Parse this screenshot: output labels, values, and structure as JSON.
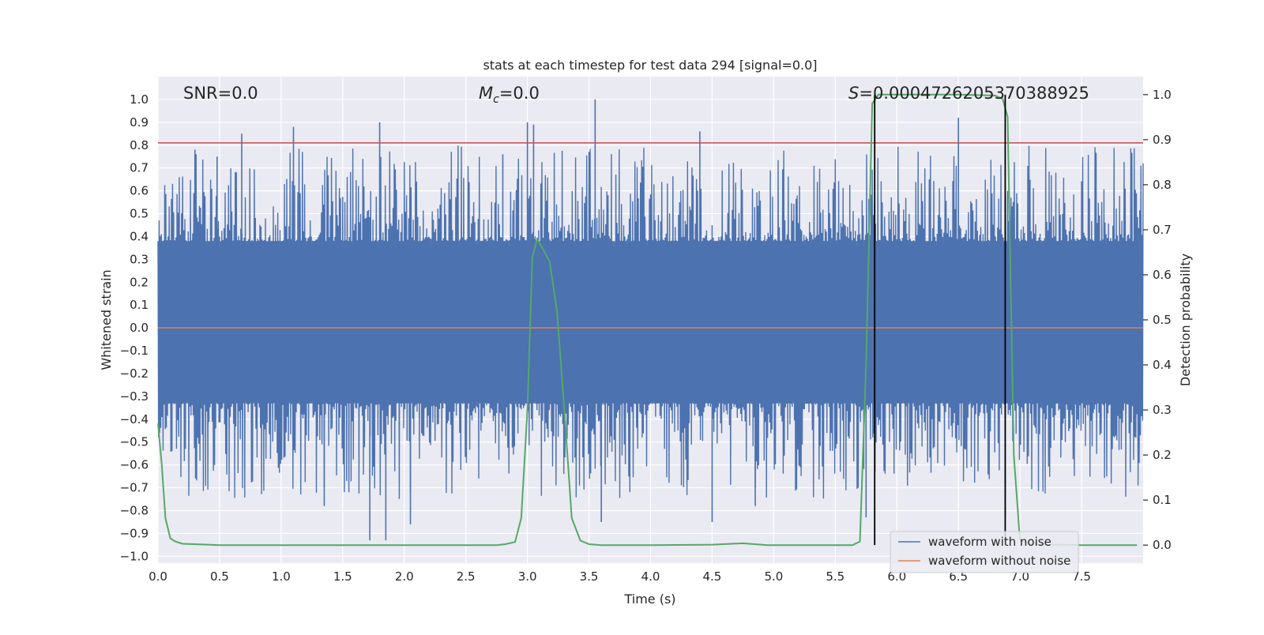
{
  "chart_data": {
    "type": "line",
    "title": "stats at each timestep for test data 294 [signal=0.0]",
    "xlabel": "Time (s)",
    "ylabel_left": "Whitened strain",
    "ylabel_right": "Detection probability",
    "xlim": [
      0.0,
      8.0
    ],
    "ylim_left": [
      -1.03,
      1.1
    ],
    "ylim_right": [
      -0.04,
      1.04
    ],
    "x_ticks": [
      0.0,
      0.5,
      1.0,
      1.5,
      2.0,
      2.5,
      3.0,
      3.5,
      4.0,
      4.5,
      5.0,
      5.5,
      6.0,
      6.5,
      7.0,
      7.5
    ],
    "x_tick_labels": [
      "0.0",
      "0.5",
      "1.0",
      "1.5",
      "2.0",
      "2.5",
      "3.0",
      "3.5",
      "4.0",
      "4.5",
      "5.0",
      "5.5",
      "6.0",
      "6.5",
      "7.0",
      "7.5"
    ],
    "y_left_ticks": [
      -1.0,
      -0.9,
      -0.8,
      -0.7,
      -0.6,
      -0.5,
      -0.4,
      -0.3,
      -0.2,
      -0.1,
      0.0,
      0.1,
      0.2,
      0.3,
      0.4,
      0.5,
      0.6,
      0.7,
      0.8,
      0.9,
      1.0
    ],
    "y_left_tick_labels": [
      "−1.0",
      "−0.9",
      "−0.8",
      "−0.7",
      "−0.6",
      "−0.5",
      "−0.4",
      "−0.3",
      "−0.2",
      "−0.1",
      "0.0",
      "0.1",
      "0.2",
      "0.3",
      "0.4",
      "0.5",
      "0.6",
      "0.7",
      "0.8",
      "0.9",
      "1.0"
    ],
    "y_right_ticks": [
      0.0,
      0.1,
      0.2,
      0.3,
      0.4,
      0.5,
      0.6,
      0.7,
      0.8,
      0.9,
      1.0
    ],
    "y_right_tick_labels": [
      "0.0",
      "0.1",
      "0.2",
      "0.3",
      "0.4",
      "0.5",
      "0.6",
      "0.7",
      "0.8",
      "0.9",
      "1.0"
    ],
    "annotations": {
      "snr": "SNR=0.0",
      "mc_symbol": "M",
      "mc_sub": "c",
      "mc_value": "=0.0",
      "s_symbol": "S",
      "s_value": "=0.0004726205370388925"
    },
    "series": [
      {
        "name": "waveform with noise",
        "color": "#4c72b0",
        "axis": "left",
        "kind": "dense-noise",
        "samples_per_second": 220,
        "typical_upper": 0.38,
        "typical_lower": -0.33,
        "peaks": [
          [
            0.3,
            0.78
          ],
          [
            0.48,
            0.75
          ],
          [
            0.68,
            0.85
          ],
          [
            1.1,
            0.88
          ],
          [
            1.8,
            0.9
          ],
          [
            1.85,
            -0.93
          ],
          [
            1.72,
            -0.93
          ],
          [
            2.8,
            0.76
          ],
          [
            3.0,
            0.9
          ],
          [
            3.05,
            0.89
          ],
          [
            3.55,
            1.0
          ],
          [
            4.4,
            0.86
          ],
          [
            5.75,
            -0.83
          ],
          [
            6.5,
            0.92
          ],
          [
            6.88,
            -0.83
          ],
          [
            1.35,
            -0.78
          ],
          [
            2.05,
            -0.86
          ],
          [
            3.6,
            -0.85
          ],
          [
            4.5,
            -0.85
          ],
          [
            4.85,
            -0.78
          ]
        ]
      },
      {
        "name": "waveform without noise",
        "color": "#dd8452",
        "axis": "left",
        "kind": "constant",
        "value": 0.0
      },
      {
        "name": "detection probability",
        "color": "#55a868",
        "axis": "right",
        "kind": "line",
        "x": [
          0.0,
          0.03,
          0.06,
          0.1,
          0.14,
          0.2,
          0.3,
          0.5,
          1.0,
          2.0,
          2.5,
          2.75,
          2.82,
          2.9,
          2.95,
          3.0,
          3.04,
          3.08,
          3.12,
          3.18,
          3.24,
          3.3,
          3.36,
          3.43,
          3.5,
          3.6,
          4.0,
          4.5,
          4.75,
          4.95,
          5.5,
          5.64,
          5.7,
          5.75,
          5.8,
          5.85,
          5.9,
          6.0,
          6.5,
          6.8,
          6.86,
          6.9,
          6.95,
          7.0,
          7.1,
          7.5,
          7.95
        ],
        "y": [
          0.27,
          0.18,
          0.06,
          0.015,
          0.008,
          0.003,
          0.002,
          0.0,
          0.0,
          0.0,
          0.0,
          0.0,
          0.002,
          0.007,
          0.06,
          0.3,
          0.64,
          0.68,
          0.66,
          0.63,
          0.52,
          0.3,
          0.06,
          0.01,
          0.002,
          0.0,
          0.0,
          0.001,
          0.004,
          0.0,
          0.0,
          0.0,
          0.008,
          0.4,
          0.98,
          1.0,
          1.0,
          1.0,
          1.0,
          0.998,
          0.99,
          0.95,
          0.2,
          0.01,
          0.002,
          0.0,
          0.0
        ]
      }
    ],
    "hlines": [
      {
        "name": "threshold",
        "axis": "left",
        "value": 0.81,
        "color": "#c44e52"
      }
    ],
    "vlines": [
      {
        "name": "detection-start",
        "x": 5.82,
        "color": "#000000",
        "y_right_top": 1.0
      },
      {
        "name": "detection-end",
        "x": 6.88,
        "color": "#000000",
        "y_right_top": 1.0
      }
    ],
    "grid": true,
    "background": "#eaeaf2",
    "legend_position": "lower-right",
    "legend": [
      "waveform with noise",
      "waveform without noise"
    ]
  }
}
